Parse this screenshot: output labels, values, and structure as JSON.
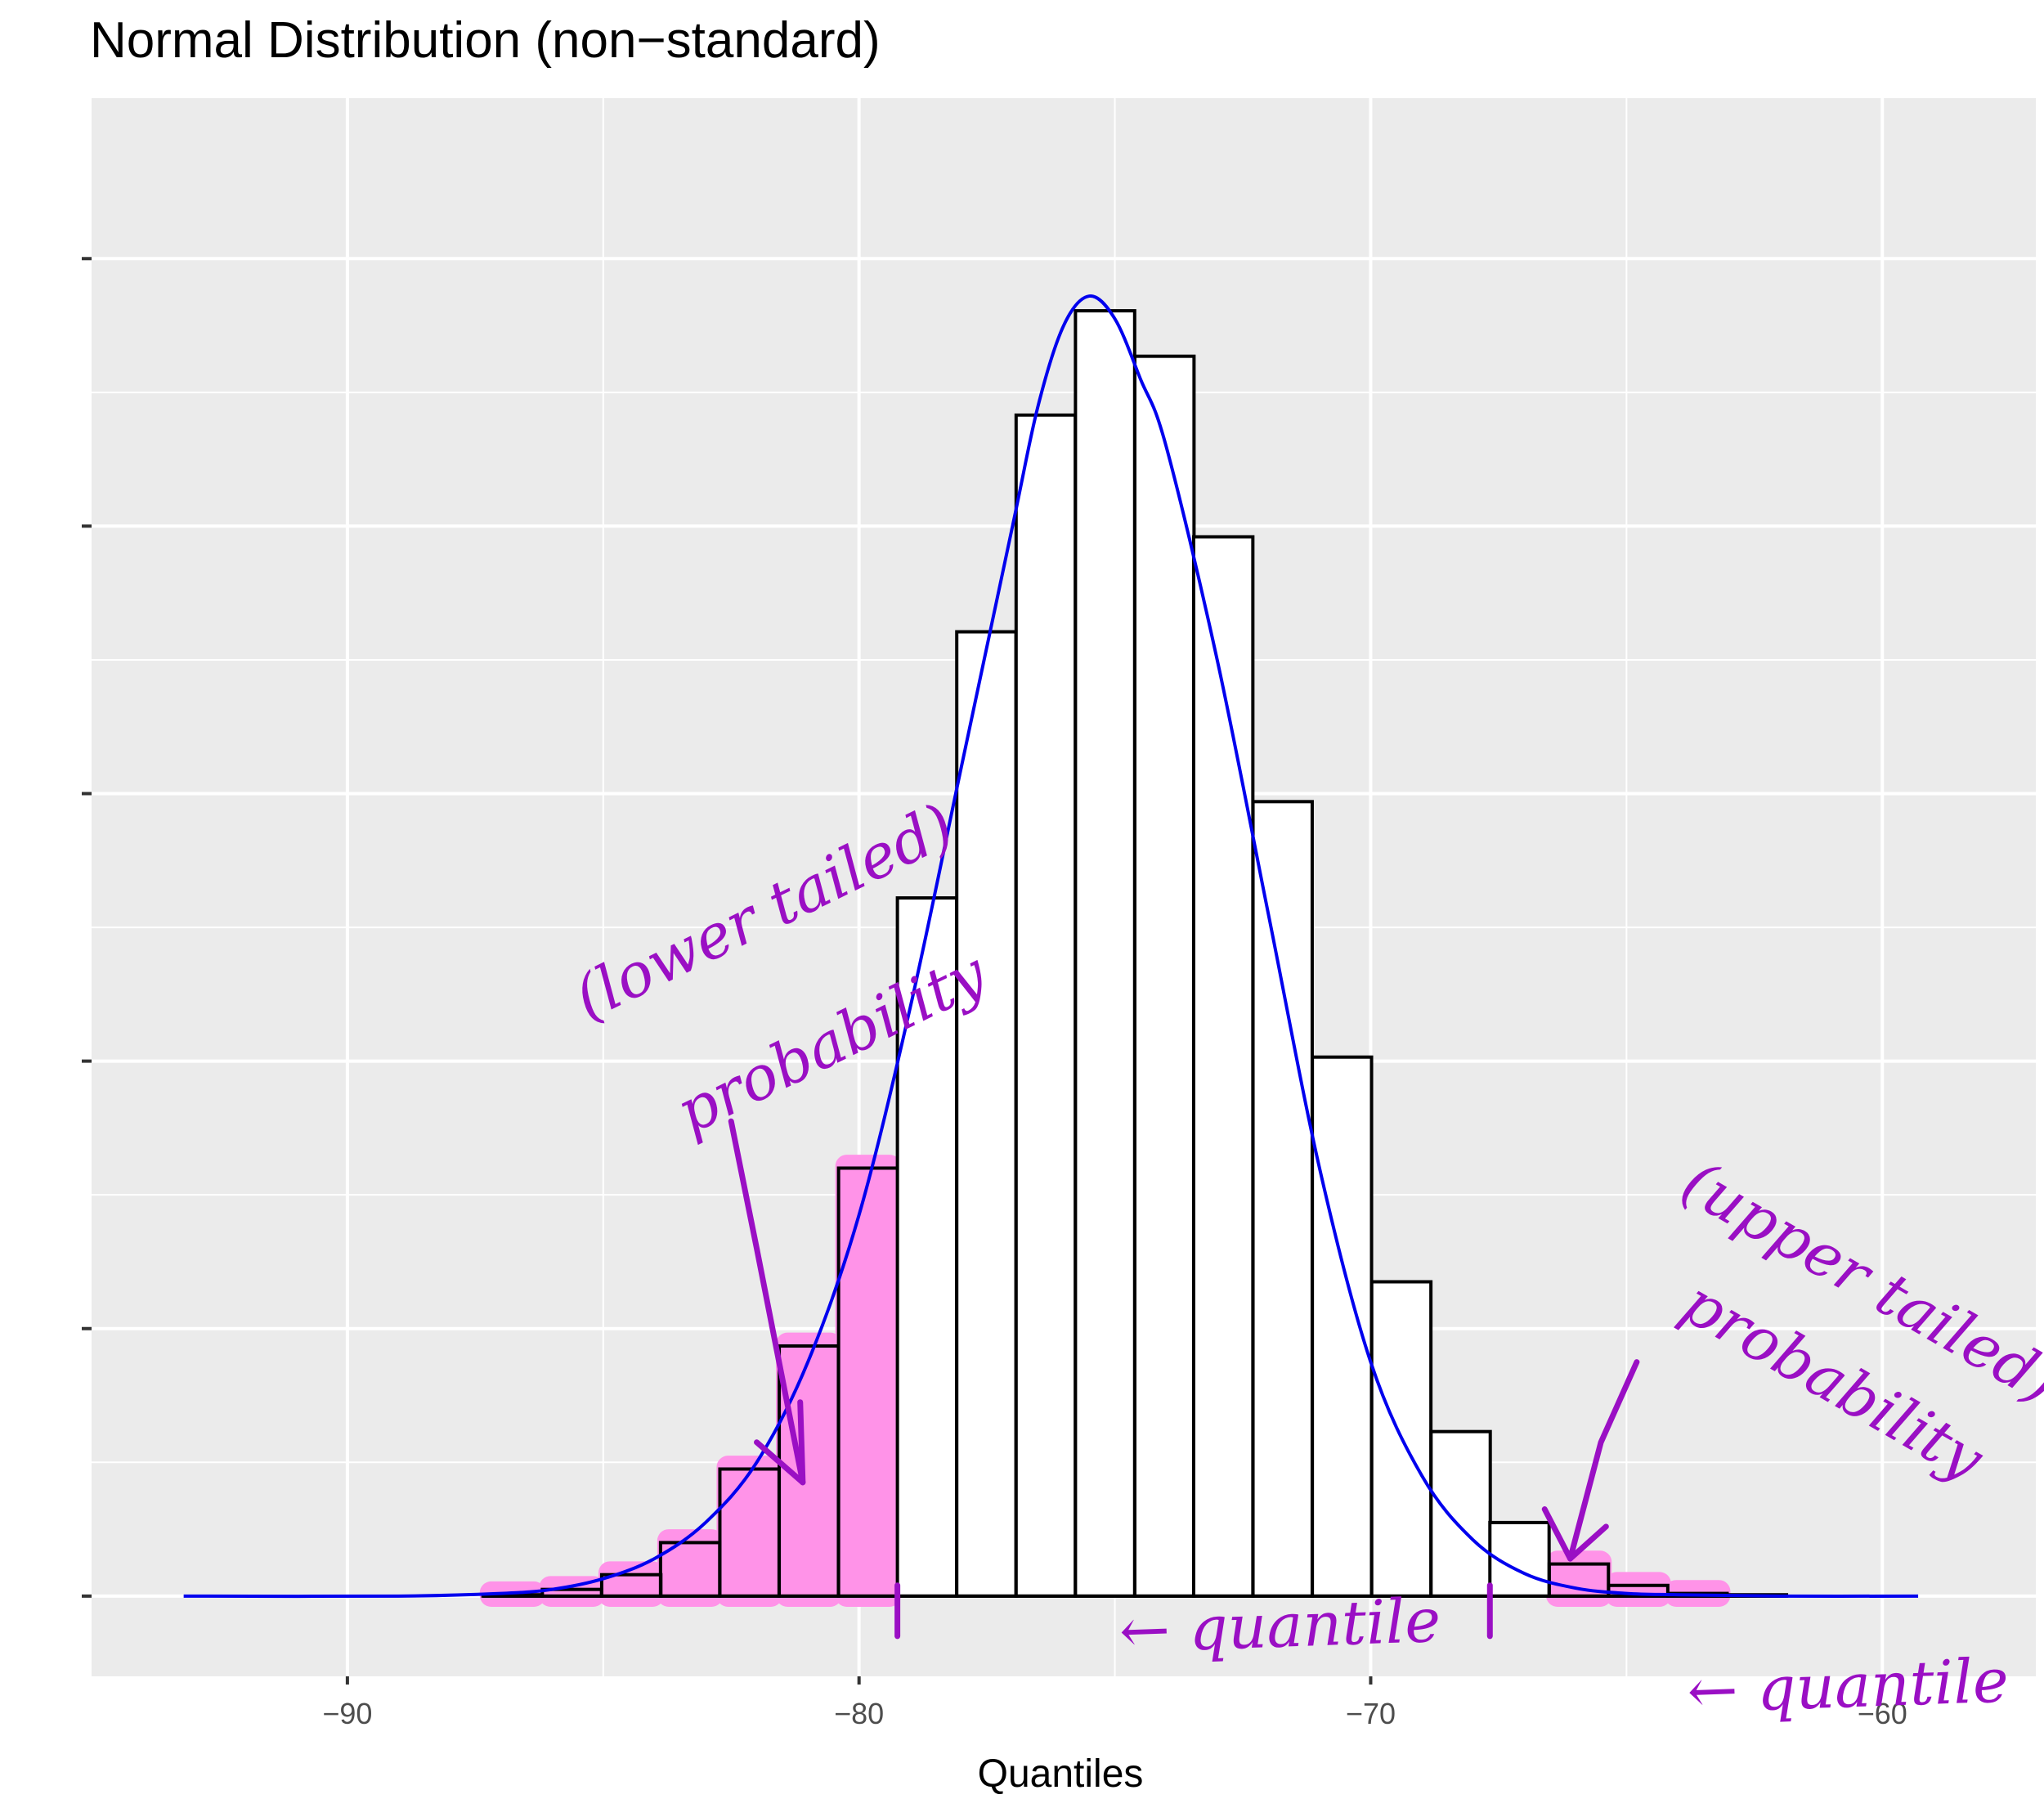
{
  "chart_data": {
    "type": "bar",
    "title": "Normal Distribution (non−standard)",
    "xlabel": "Quantiles",
    "ylabel": "",
    "xlim": [
      -95.0,
      -57.0
    ],
    "ylim": [
      -0.6,
      11.2
    ],
    "x_ticks": [
      -90,
      -80,
      -70,
      -60
    ],
    "x_tick_labels": [
      "−90",
      "−80",
      "−70",
      "−60"
    ],
    "y_ticks": [
      0,
      2,
      4,
      6,
      8,
      10
    ],
    "y_tick_labels": [
      "",
      "",
      "",
      "",
      "",
      ""
    ],
    "grid": true,
    "bins": {
      "left_edges": [
        -87.35,
        -86.19,
        -85.03,
        -83.88,
        -82.72,
        -81.56,
        -80.4,
        -79.25,
        -78.09,
        -76.93,
        -75.77,
        -74.61,
        -73.46,
        -72.3,
        -71.14,
        -69.98,
        -68.82,
        -67.67,
        -66.51,
        -65.35,
        -64.19,
        -63.03
      ],
      "width": 1.157,
      "values": [
        0.01,
        0.05,
        0.16,
        0.4,
        0.95,
        1.87,
        3.2,
        5.22,
        7.21,
        8.83,
        9.61,
        9.27,
        7.92,
        5.94,
        4.03,
        2.35,
        1.23,
        0.55,
        0.24,
        0.08,
        0.02,
        0.01
      ]
    },
    "highlighted_bins": [
      0,
      1,
      2,
      3,
      4,
      5,
      6,
      18,
      19,
      20
    ],
    "density_curve": {
      "name": "density",
      "color": "#0000ee",
      "x": [
        -93.2,
        -89.0,
        -87.0,
        -86.0,
        -85.0,
        -84.0,
        -83.0,
        -82.0,
        -81.0,
        -80.0,
        -79.0,
        -78.0,
        -77.0,
        -76.5,
        -76.0,
        -75.5,
        -75.0,
        -74.5,
        -74.0,
        -73.0,
        -72.0,
        -71.0,
        -70.0,
        -69.0,
        -68.0,
        -67.0,
        -66.0,
        -65.0,
        -64.0,
        -62.0,
        -59.3
      ],
      "y": [
        0.0,
        0.0,
        0.02,
        0.05,
        0.13,
        0.28,
        0.55,
        1.0,
        1.75,
        2.85,
        4.4,
        6.2,
        8.0,
        8.9,
        9.5,
        9.72,
        9.55,
        9.1,
        8.6,
        7.0,
        5.1,
        3.2,
        1.75,
        0.9,
        0.42,
        0.17,
        0.06,
        0.02,
        0.01,
        0.0,
        0.0
      ]
    },
    "annotations": [
      {
        "text": "(lower tailed)",
        "x": -85.3,
        "y": 4.3,
        "rotation": -26
      },
      {
        "text": "probability",
        "x": -83.3,
        "y": 3.45,
        "rotation": -26
      },
      {
        "text": "(upper tailed)",
        "x": -64.0,
        "y": 3.0,
        "rotation": 30
      },
      {
        "text": "probability",
        "x": -64.0,
        "y": 2.1,
        "rotation": 30
      },
      {
        "text": "← quantile",
        "x": -74.9,
        "y": -0.42,
        "rotation": -2
      },
      {
        "text": "← quantile",
        "x": -63.8,
        "y": -0.87,
        "rotation": -2
      }
    ],
    "quantile_markers": [
      -79.25,
      -67.67
    ]
  },
  "colors": {
    "panel_bg": "#ebebeb",
    "grid": "#ffffff",
    "bar_fill": "#ffffff",
    "bar_stroke": "#000000",
    "highlight": "#ff93e8",
    "annotation": "#9a0fc4",
    "curve": "#0000ee"
  }
}
